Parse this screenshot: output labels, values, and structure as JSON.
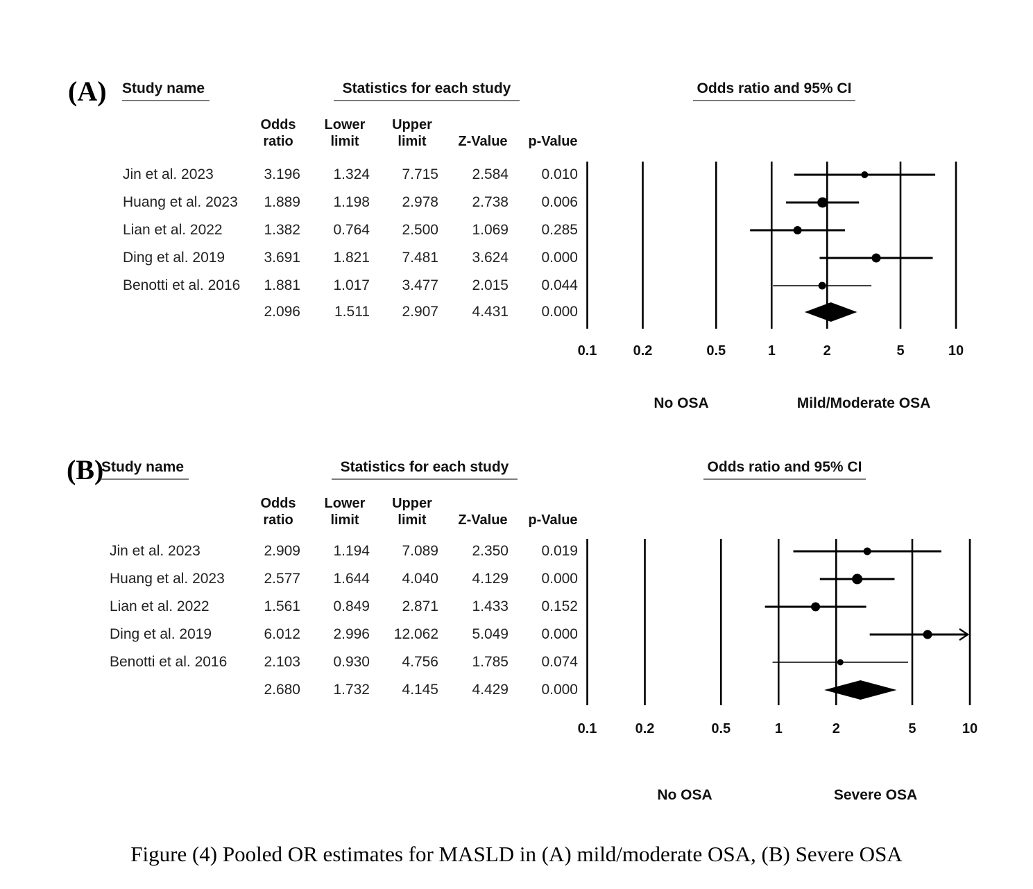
{
  "figure": {
    "caption": "Figure (4) Pooled OR estimates for MASLD in (A) mild/moderate OSA, (B) Severe OSA"
  },
  "chart_data": [
    {
      "type": "forest",
      "panel_label": "(A)",
      "header_study": "Study name",
      "header_stats": "Statistics for each study",
      "header_plot": "Odds ratio and 95% CI",
      "col_headers": [
        "Odds\nratio",
        "Lower\nlimit",
        "Upper\nlimit",
        "Z-Value",
        "p-Value"
      ],
      "studies": [
        {
          "name": "Jin et al. 2023",
          "or": "3.196",
          "lower": "1.324",
          "upper": "7.715",
          "z": "2.584",
          "p": "0.010",
          "marker_r": 5,
          "ci_lw": 3
        },
        {
          "name": "Huang et al. 2023",
          "or": "1.889",
          "lower": "1.198",
          "upper": "2.978",
          "z": "2.738",
          "p": "0.006",
          "marker_r": 7.5,
          "ci_lw": 3
        },
        {
          "name": "Lian et al. 2022",
          "or": "1.382",
          "lower": "0.764",
          "upper": "2.500",
          "z": "1.069",
          "p": "0.285",
          "marker_r": 6,
          "ci_lw": 3
        },
        {
          "name": "Ding et al. 2019",
          "or": "3.691",
          "lower": "1.821",
          "upper": "7.481",
          "z": "3.624",
          "p": "0.000",
          "marker_r": 6.5,
          "ci_lw": 3
        },
        {
          "name": "Benotti et al. 2016",
          "or": "1.881",
          "lower": "1.017",
          "upper": "3.477",
          "z": "2.015",
          "p": "0.044",
          "marker_r": 5.5,
          "ci_lw": 1.6
        }
      ],
      "pooled": {
        "or": "2.096",
        "lower": "1.511",
        "upper": "2.907",
        "z": "4.431",
        "p": "0.000"
      },
      "axis": {
        "scale": "log",
        "min": 0.1,
        "max": 10,
        "ticks": [
          "0.1",
          "0.2",
          "0.5",
          "1",
          "2",
          "5",
          "10"
        ]
      },
      "group_left": "No OSA",
      "group_right": "Mild/Moderate OSA",
      "colors": {
        "marker": "#000000",
        "line": "#000000",
        "grid": "#000000"
      }
    },
    {
      "type": "forest",
      "panel_label": "(B)",
      "header_study": "Study name",
      "header_stats": "Statistics for each study",
      "header_plot": "Odds ratio and 95% CI",
      "col_headers": [
        "Odds\nratio",
        "Lower\nlimit",
        "Upper\nlimit",
        "Z-Value",
        "p-Value"
      ],
      "studies": [
        {
          "name": "Jin et al. 2023",
          "or": "2.909",
          "lower": "1.194",
          "upper": "7.089",
          "z": "2.350",
          "p": "0.019",
          "marker_r": 5.5,
          "ci_lw": 3
        },
        {
          "name": "Huang et al. 2023",
          "or": "2.577",
          "lower": "1.644",
          "upper": "4.040",
          "z": "4.129",
          "p": "0.000",
          "marker_r": 7.5,
          "ci_lw": 3
        },
        {
          "name": "Lian et al. 2022",
          "or": "1.561",
          "lower": "0.849",
          "upper": "2.871",
          "z": "1.433",
          "p": "0.152",
          "marker_r": 6.5,
          "ci_lw": 3
        },
        {
          "name": "Ding et al. 2019",
          "or": "6.012",
          "lower": "2.996",
          "upper": "12.062",
          "z": "5.049",
          "p": "0.000",
          "marker_r": 6.5,
          "ci_lw": 3
        },
        {
          "name": "Benotti et al. 2016",
          "or": "2.103",
          "lower": "0.930",
          "upper": "4.756",
          "z": "1.785",
          "p": "0.074",
          "marker_r": 4.5,
          "ci_lw": 1.6
        }
      ],
      "pooled": {
        "or": "2.680",
        "lower": "1.732",
        "upper": "4.145",
        "z": "4.429",
        "p": "0.000"
      },
      "axis": {
        "scale": "log",
        "min": 0.1,
        "max": 10,
        "ticks": [
          "0.1",
          "0.2",
          "0.5",
          "1",
          "2",
          "5",
          "10"
        ]
      },
      "group_left": "No OSA",
      "group_right": "Severe OSA",
      "colors": {
        "marker": "#000000",
        "line": "#000000",
        "grid": "#000000"
      }
    }
  ]
}
